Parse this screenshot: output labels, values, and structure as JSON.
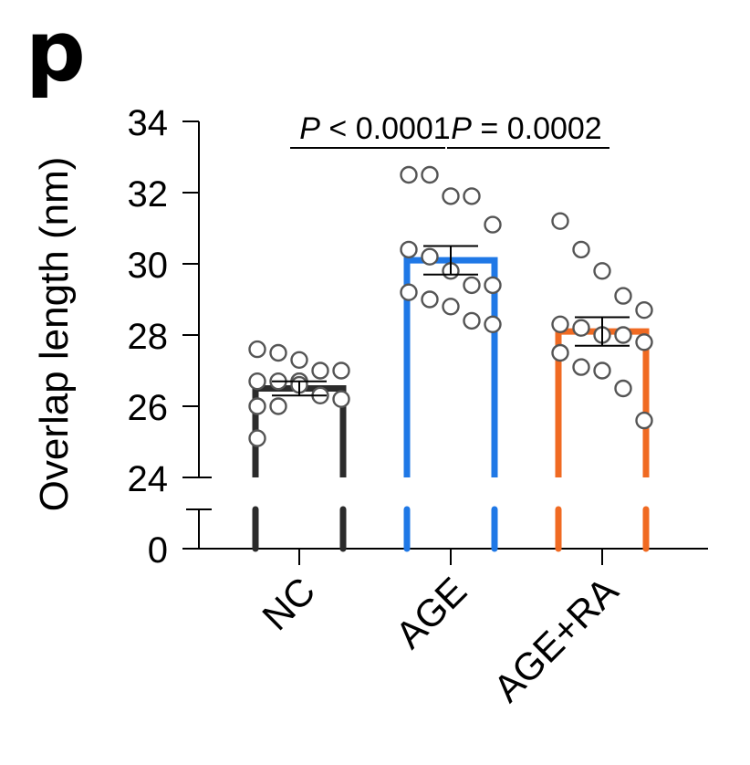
{
  "panel_label": "p",
  "chart_data": {
    "type": "bar",
    "ylabel": "Overlap length (nm)",
    "xlabel": "",
    "categories": [
      "NC",
      "AGE",
      "AGE+RA"
    ],
    "colors": [
      "#2b2b2b",
      "#1f78e6",
      "#f06a22"
    ],
    "point_color": "#555555",
    "yaxis": {
      "broken": true,
      "lower_ticks": [
        0
      ],
      "upper_ticks": [
        24,
        26,
        28,
        30,
        32,
        34
      ],
      "upper_range": [
        24,
        34
      ]
    },
    "series": [
      {
        "category": "NC",
        "mean": 26.5,
        "sem": 0.2,
        "points": [
          27.6,
          27.5,
          27.3,
          27.0,
          27.0,
          26.7,
          26.7,
          26.7,
          26.7,
          26.7,
          26.6,
          26.3,
          26.2,
          26.0,
          26.0,
          25.1
        ]
      },
      {
        "category": "AGE",
        "mean": 30.1,
        "sem": 0.4,
        "points": [
          32.5,
          32.5,
          31.9,
          31.9,
          31.1,
          30.4,
          30.2,
          29.8,
          29.4,
          29.4,
          29.2,
          29.0,
          28.8,
          28.4,
          28.3
        ]
      },
      {
        "category": "AGE+RA",
        "mean": 28.1,
        "sem": 0.4,
        "points": [
          31.2,
          30.4,
          29.8,
          29.1,
          28.7,
          28.3,
          28.2,
          28.0,
          28.0,
          27.8,
          27.5,
          27.1,
          27.0,
          26.5,
          25.6
        ]
      }
    ],
    "comparisons": [
      {
        "from": "NC",
        "to": "AGE",
        "p_prefix": "P",
        "p_rest": " < 0.0001"
      },
      {
        "from": "AGE",
        "to": "AGE+RA",
        "p_prefix": "P",
        "p_rest": " = 0.0002"
      }
    ]
  }
}
